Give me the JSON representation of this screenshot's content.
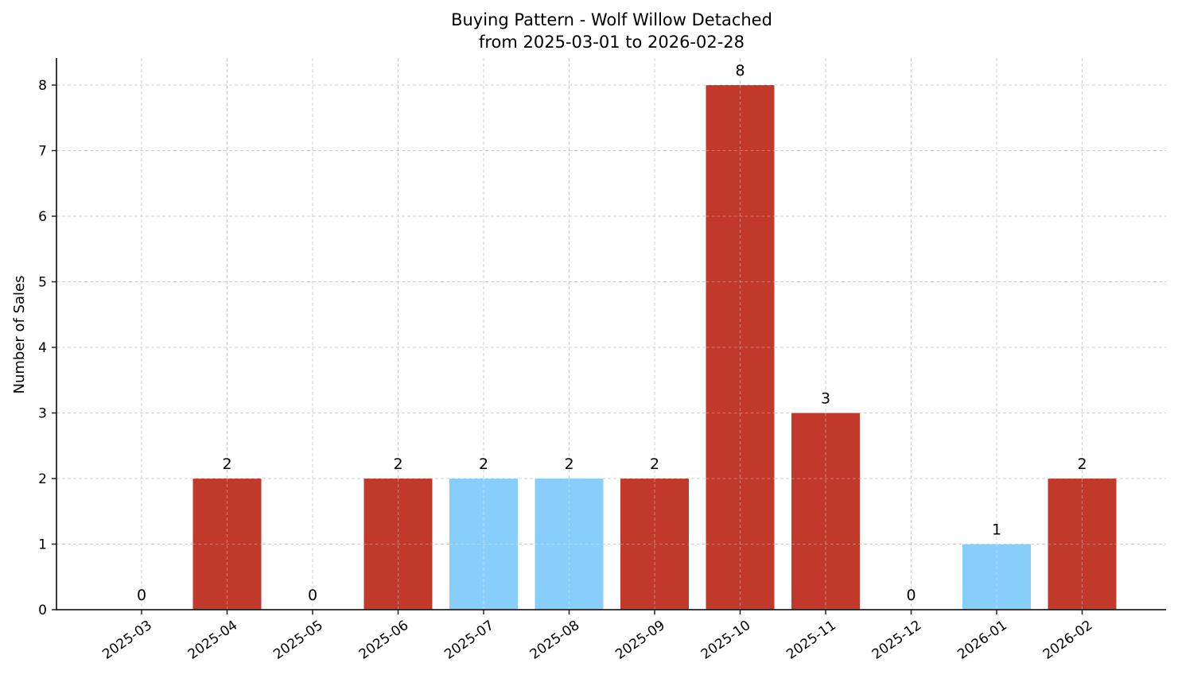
{
  "chart_data": {
    "type": "bar",
    "title": "Buying Pattern - Wolf Willow Detached",
    "subtitle": "from 2025-03-01 to 2026-02-28",
    "xlabel": "",
    "ylabel": "Number of Sales",
    "ylim": [
      0,
      8.4
    ],
    "yticks": [
      0,
      1,
      2,
      3,
      4,
      5,
      6,
      7,
      8
    ],
    "grid": true,
    "categories": [
      "2025-03",
      "2025-04",
      "2025-05",
      "2025-06",
      "2025-07",
      "2025-08",
      "2025-09",
      "2025-10",
      "2025-11",
      "2025-12",
      "2026-01",
      "2026-02"
    ],
    "values": [
      0,
      2,
      0,
      2,
      2,
      2,
      2,
      8,
      3,
      0,
      1,
      2
    ],
    "bar_colors": [
      "#c0392b",
      "#c0392b",
      "#c0392b",
      "#c0392b",
      "#87cefa",
      "#87cefa",
      "#c0392b",
      "#c0392b",
      "#c0392b",
      "#c0392b",
      "#87cefa",
      "#c0392b"
    ],
    "colors": {
      "high": "#c0392b",
      "low": "#87cefa"
    }
  }
}
